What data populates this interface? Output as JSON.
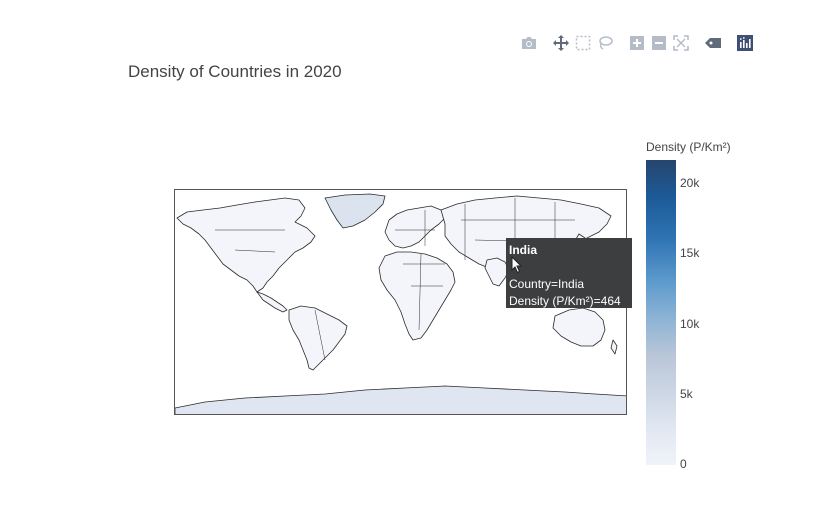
{
  "modebar": {
    "buttons": [
      "camera-icon",
      "pan-icon",
      "box-select-icon",
      "lasso-icon",
      "zoom-in-icon",
      "zoom-out-icon",
      "autoscale-icon",
      "reset-icon",
      "plotly-logo-icon"
    ]
  },
  "chart_title": "Density of Countries in 2020",
  "colorbar": {
    "title": "Density (P/Km²)",
    "ticks": [
      "20k",
      "15k",
      "10k",
      "5k",
      "0"
    ],
    "colors": [
      "#26456e",
      "#1c5a97",
      "#5d9bcd",
      "#b9c6d8",
      "#f0f3f9"
    ]
  },
  "tooltip": {
    "title": "India",
    "line1": "Country=India",
    "line2": "Density (P/Km²)=464"
  },
  "chart_data": {
    "type": "choropleth",
    "title": "Density of Countries in 2020",
    "colorbar_title": "Density (P/Km²)",
    "colorbar_range": [
      0,
      21000
    ],
    "colorbar_ticks": [
      0,
      5000,
      10000,
      15000,
      20000
    ],
    "hovered": {
      "country": "India",
      "density": 464
    }
  }
}
